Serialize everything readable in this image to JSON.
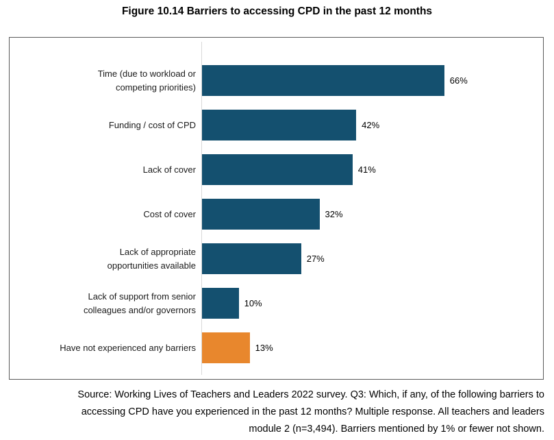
{
  "title": "Figure 10.14 Barriers to accessing CPD in the past 12 months",
  "chart_data": {
    "type": "bar",
    "orientation": "horizontal",
    "title": "Figure 10.14 Barriers to accessing CPD in the past 12 months",
    "categories": [
      "Time (due to workload or\ncompeting priorities)",
      "Funding / cost of CPD",
      "Lack of cover",
      "Cost of cover",
      "Lack of appropriate\nopportunities available",
      "Lack of support from senior\ncolleagues and/or governors",
      "Have not experienced any barriers"
    ],
    "values": [
      66,
      42,
      41,
      32,
      27,
      10,
      13
    ],
    "data_labels": [
      "66%",
      "42%",
      "41%",
      "32%",
      "27%",
      "10%",
      "13%"
    ],
    "unit": "percent",
    "xlim": [
      0,
      93
    ],
    "grid": "none",
    "legend": "none",
    "bar_colors": [
      "#14506F",
      "#14506F",
      "#14506F",
      "#14506F",
      "#14506F",
      "#14506F",
      "#E8872D"
    ]
  },
  "colors": {
    "bar_primary": "#14506F",
    "bar_highlight": "#E8872D",
    "box_border": "#595959",
    "axis_line": "#d9d9d9",
    "text": "#000000"
  },
  "source": {
    "lines": [
      "Source: Working Lives of Teachers and Leaders 2022 survey. Q3: Which, if any, of the following barriers to",
      "accessing CPD have you experienced in the past 12 months? Multiple response. All teachers and leaders",
      "module 2 (n=3,494). Barriers mentioned by 1% or fewer not shown."
    ]
  }
}
